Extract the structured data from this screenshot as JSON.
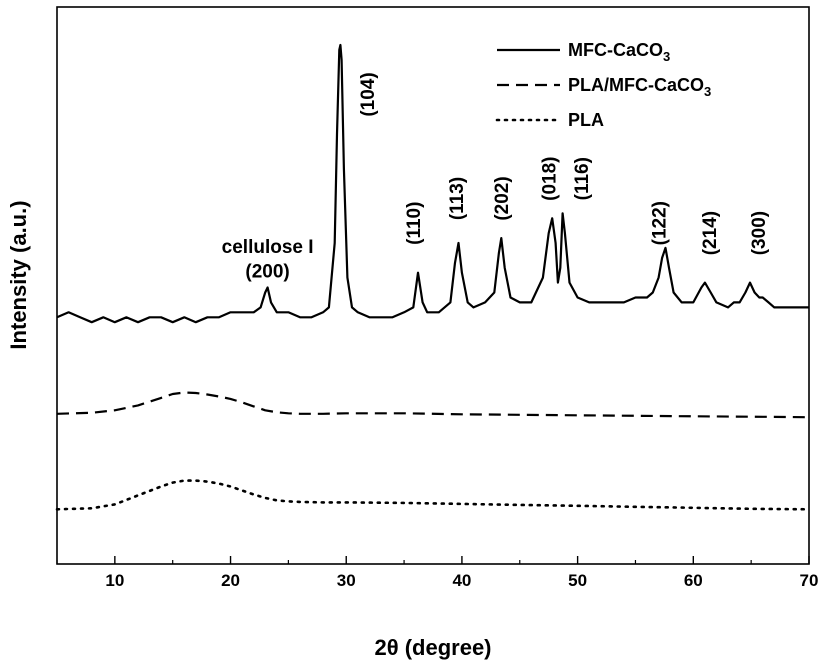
{
  "chart_data": {
    "type": "line",
    "xlabel": "2θ (degree)",
    "ylabel": "Intensity (a.u.)",
    "xlim": [
      5,
      70
    ],
    "ylim": [
      0,
      1.0
    ],
    "yticks_shown": false,
    "xticks": [
      10,
      20,
      30,
      40,
      50,
      60,
      70
    ],
    "grid": false,
    "legend_position": "top-right",
    "series": [
      {
        "name": "MFC-CaCO3",
        "line_style": "solid",
        "color": "#000000",
        "x": [
          5,
          6,
          7,
          8,
          9,
          10,
          11,
          12,
          13,
          14,
          15,
          16,
          17,
          18,
          19,
          20,
          21,
          22,
          22.6,
          23.0,
          23.2,
          23.5,
          24.0,
          25,
          26,
          27,
          28,
          28.5,
          29.0,
          29.2,
          29.4,
          29.5,
          29.6,
          29.8,
          30.1,
          30.5,
          31,
          32,
          33,
          34,
          35,
          35.8,
          36.2,
          36.6,
          37,
          38,
          39,
          39.4,
          39.7,
          40.0,
          40.5,
          41,
          42,
          42.8,
          43.2,
          43.4,
          43.7,
          44.2,
          45,
          46,
          47,
          47.5,
          47.8,
          48.1,
          48.3,
          48.5,
          48.7,
          48.9,
          49.3,
          50,
          51,
          52,
          53,
          54,
          55,
          56,
          56.5,
          57,
          57.3,
          57.6,
          57.9,
          58.3,
          59,
          60,
          60.7,
          61,
          61.5,
          62,
          63,
          63.5,
          64,
          64.5,
          64.9,
          65.3,
          65.7,
          66,
          66.5,
          67,
          68,
          69,
          70
        ],
        "values": [
          0.45,
          0.46,
          0.45,
          0.44,
          0.45,
          0.44,
          0.45,
          0.44,
          0.45,
          0.45,
          0.44,
          0.45,
          0.44,
          0.45,
          0.45,
          0.46,
          0.46,
          0.46,
          0.47,
          0.5,
          0.51,
          0.48,
          0.46,
          0.46,
          0.45,
          0.45,
          0.46,
          0.47,
          0.6,
          0.82,
          0.99,
          1.0,
          0.97,
          0.75,
          0.53,
          0.47,
          0.46,
          0.45,
          0.45,
          0.45,
          0.46,
          0.47,
          0.54,
          0.48,
          0.46,
          0.46,
          0.48,
          0.56,
          0.6,
          0.54,
          0.48,
          0.47,
          0.48,
          0.5,
          0.58,
          0.61,
          0.55,
          0.49,
          0.48,
          0.48,
          0.53,
          0.62,
          0.65,
          0.6,
          0.52,
          0.55,
          0.66,
          0.62,
          0.52,
          0.49,
          0.48,
          0.48,
          0.48,
          0.48,
          0.49,
          0.49,
          0.5,
          0.53,
          0.57,
          0.59,
          0.55,
          0.5,
          0.48,
          0.48,
          0.51,
          0.52,
          0.5,
          0.48,
          0.47,
          0.48,
          0.48,
          0.5,
          0.52,
          0.5,
          0.49,
          0.49,
          0.48,
          0.47,
          0.47,
          0.47,
          0.47
        ]
      },
      {
        "name": "PLA/MFC-CaCO3",
        "line_style": "dashed",
        "color": "#000000",
        "x": [
          5,
          8,
          10,
          12,
          14,
          15,
          16,
          17,
          18,
          19,
          20,
          21,
          22,
          23,
          24,
          25,
          26,
          28,
          30,
          35,
          40,
          45,
          50,
          55,
          60,
          65,
          70
        ],
        "values": [
          0.255,
          0.257,
          0.262,
          0.272,
          0.287,
          0.295,
          0.298,
          0.297,
          0.294,
          0.29,
          0.285,
          0.278,
          0.27,
          0.262,
          0.258,
          0.256,
          0.255,
          0.255,
          0.256,
          0.256,
          0.254,
          0.253,
          0.252,
          0.251,
          0.25,
          0.249,
          0.248
        ]
      },
      {
        "name": "PLA",
        "line_style": "dotted",
        "color": "#000000",
        "x": [
          5,
          8,
          10,
          12,
          14,
          15,
          16,
          17,
          18,
          19,
          20,
          21,
          22,
          23,
          24,
          25,
          26,
          28,
          30,
          35,
          40,
          45,
          50,
          55,
          60,
          65,
          70
        ],
        "values": [
          0.062,
          0.064,
          0.072,
          0.09,
          0.108,
          0.116,
          0.12,
          0.12,
          0.118,
          0.114,
          0.108,
          0.1,
          0.092,
          0.085,
          0.08,
          0.078,
          0.077,
          0.076,
          0.076,
          0.075,
          0.073,
          0.071,
          0.069,
          0.067,
          0.065,
          0.063,
          0.062
        ]
      }
    ],
    "annotations": [
      {
        "text": "cellulose I",
        "x": 23.2,
        "y": 0.58
      },
      {
        "text": "(200)",
        "x": 23.2,
        "y": 0.53
      },
      {
        "text": "(104)",
        "x": 31.8,
        "y": 0.9,
        "rotated": true
      },
      {
        "text": "(110)",
        "x": 35.8,
        "y": 0.64,
        "rotated": true
      },
      {
        "text": "(113)",
        "x": 39.5,
        "y": 0.69,
        "rotated": true
      },
      {
        "text": "(202)",
        "x": 43.4,
        "y": 0.69,
        "rotated": true
      },
      {
        "text": "(018)",
        "x": 47.5,
        "y": 0.73,
        "rotated": true
      },
      {
        "text": "(116)",
        "x": 50.3,
        "y": 0.73,
        "rotated": true
      },
      {
        "text": "(122)",
        "x": 57.0,
        "y": 0.64,
        "rotated": true
      },
      {
        "text": "(214)",
        "x": 61.4,
        "y": 0.62,
        "rotated": true
      },
      {
        "text": "(300)",
        "x": 65.6,
        "y": 0.62,
        "rotated": true
      }
    ]
  }
}
